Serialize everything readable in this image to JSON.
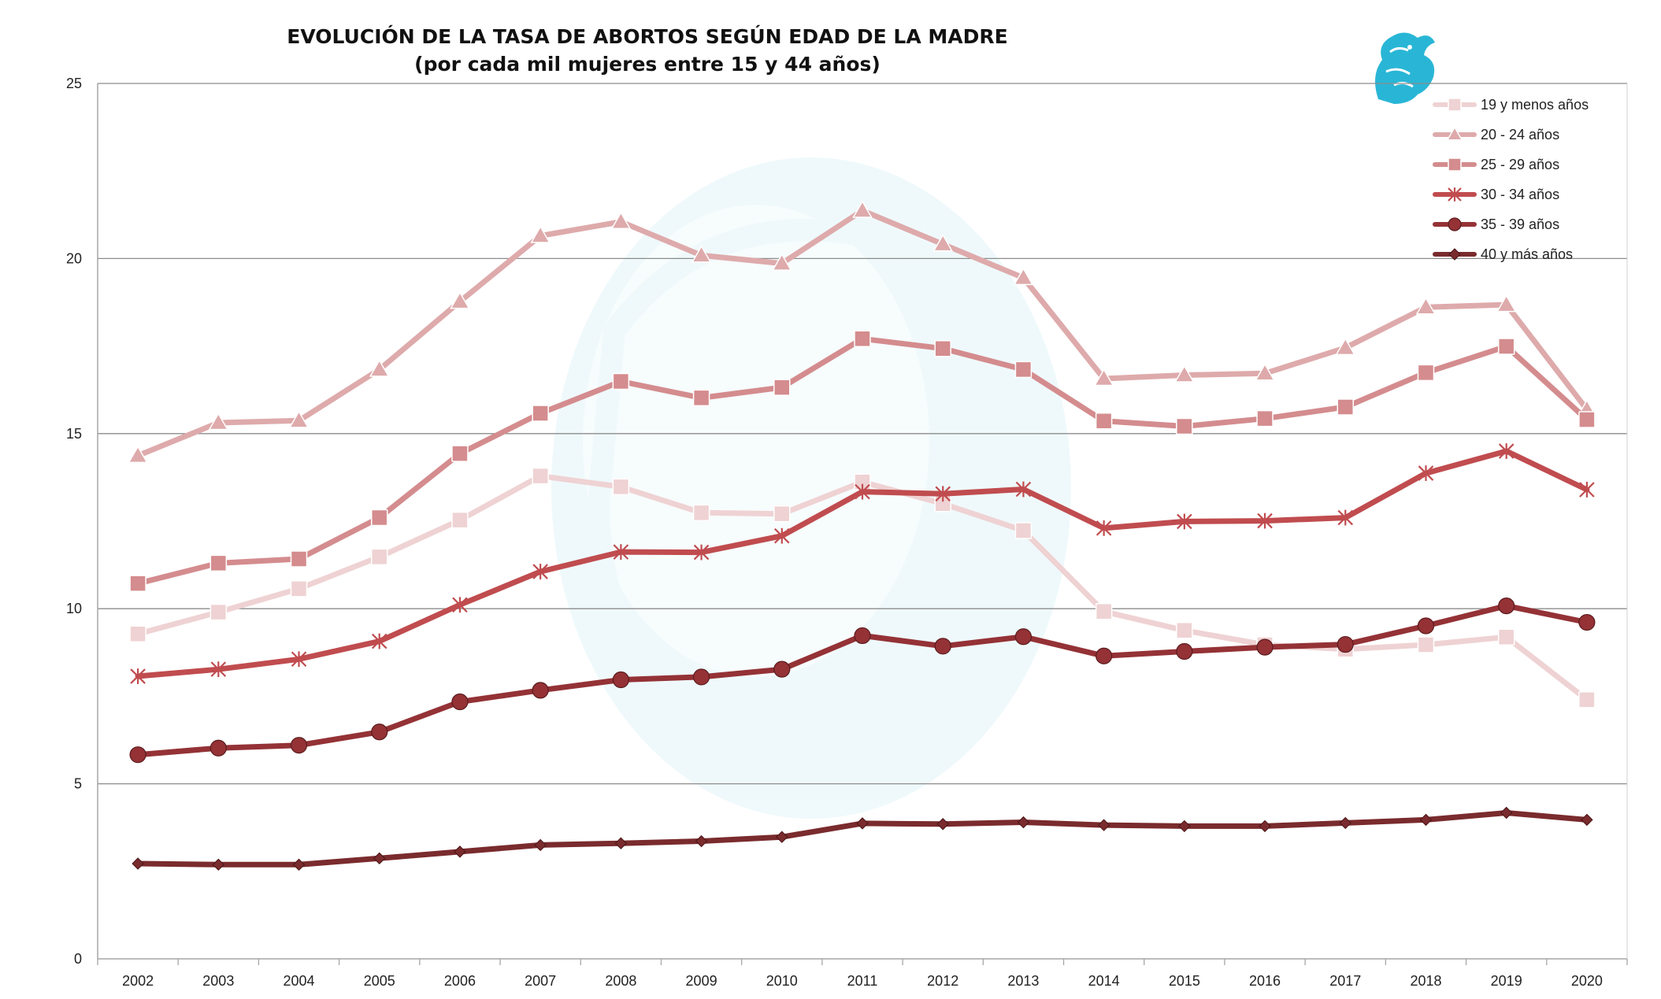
{
  "chart_data": {
    "type": "line",
    "title": "EVOLUCIÓN DE LA TASA DE ABORTOS SEGÚN EDAD DE LA MADRE",
    "subtitle": "(por cada mil mujeres entre 15 y 44 años)",
    "xlabel": "",
    "ylabel": "",
    "ylim": [
      0,
      25
    ],
    "yticks": [
      0,
      5,
      10,
      15,
      20,
      25
    ],
    "grid": true,
    "legend_position": "top-right",
    "categories": [
      "2002",
      "2003",
      "2004",
      "2005",
      "2006",
      "2007",
      "2008",
      "2009",
      "2010",
      "2011",
      "2012",
      "2013",
      "2014",
      "2015",
      "2016",
      "2017",
      "2018",
      "2019",
      "2020"
    ],
    "series": [
      {
        "name": "19 y menos años",
        "color": "#efd2d3",
        "marker": "square",
        "values": [
          9.28,
          9.9,
          10.57,
          11.48,
          12.53,
          13.79,
          13.48,
          12.74,
          12.71,
          13.62,
          13.0,
          12.23,
          9.92,
          9.38,
          8.97,
          8.84,
          8.97,
          9.19,
          7.4
        ]
      },
      {
        "name": "20 - 24 años",
        "color": "#deaaab",
        "marker": "triangle",
        "values": [
          14.37,
          15.31,
          15.37,
          16.83,
          18.77,
          20.65,
          21.05,
          20.09,
          19.86,
          21.37,
          20.41,
          19.45,
          16.57,
          16.67,
          16.72,
          17.45,
          18.61,
          18.68,
          15.69
        ]
      },
      {
        "name": "25 - 29 años",
        "color": "#d48c8e",
        "marker": "square",
        "values": [
          10.72,
          11.3,
          11.42,
          12.6,
          14.43,
          15.58,
          16.49,
          16.02,
          16.32,
          17.71,
          17.43,
          16.83,
          15.36,
          15.21,
          15.43,
          15.76,
          16.74,
          17.49,
          15.4
        ]
      },
      {
        "name": "30 - 34 años",
        "color": "#c04c4f",
        "marker": "star",
        "values": [
          8.07,
          8.27,
          8.56,
          9.07,
          10.11,
          11.06,
          11.62,
          11.61,
          12.08,
          13.34,
          13.28,
          13.41,
          12.3,
          12.49,
          12.51,
          12.6,
          13.87,
          14.5,
          13.4
        ]
      },
      {
        "name": "35 - 39 años",
        "color": "#943236",
        "marker": "circle",
        "values": [
          5.83,
          6.02,
          6.1,
          6.48,
          7.34,
          7.67,
          7.97,
          8.05,
          8.27,
          9.23,
          8.93,
          9.2,
          8.65,
          8.78,
          8.9,
          8.98,
          9.51,
          10.08,
          9.61
        ]
      },
      {
        "name": "40 y más años",
        "color": "#7a2b2d",
        "marker": "diamond",
        "values": [
          2.72,
          2.69,
          2.69,
          2.87,
          3.06,
          3.25,
          3.3,
          3.36,
          3.48,
          3.87,
          3.85,
          3.9,
          3.82,
          3.79,
          3.79,
          3.88,
          3.97,
          4.17,
          3.97
        ]
      }
    ]
  },
  "icons": {
    "logo": "griffin-logo-icon",
    "watermark": "griffin-watermark-icon"
  },
  "colors": {
    "logo": "#29b6d6",
    "gridline": "#8c8c8c",
    "axis": "#a6a6a6"
  }
}
